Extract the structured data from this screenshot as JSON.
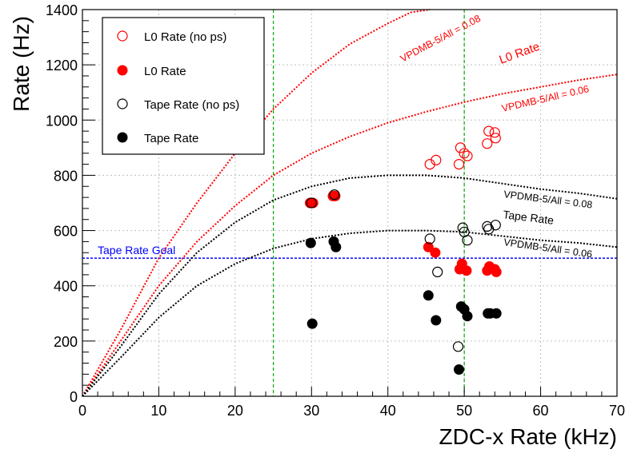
{
  "chart_data": {
    "type": "scatter",
    "xlabel": "ZDC-x Rate (kHz)",
    "ylabel": "Rate (Hz)",
    "xlim": [
      0,
      70
    ],
    "ylim": [
      0,
      1400
    ],
    "xticks": [
      "0",
      "10",
      "20",
      "30",
      "40",
      "50",
      "60",
      "70"
    ],
    "yticks": [
      "0",
      "200",
      "400",
      "600",
      "800",
      "1000",
      "1200",
      "1400"
    ],
    "grid": true,
    "legend_position": "top-left",
    "series": [
      {
        "name": "L0 Rate (no ps)",
        "marker": "open-circle",
        "color": "#ff0000",
        "points": [
          [
            45.5,
            840
          ],
          [
            46.3,
            855
          ],
          [
            49.3,
            840
          ],
          [
            49.5,
            900
          ],
          [
            50.0,
            880
          ],
          [
            50.4,
            870
          ],
          [
            53.0,
            915
          ],
          [
            53.2,
            960
          ],
          [
            54.0,
            955
          ],
          [
            54.1,
            935
          ]
        ]
      },
      {
        "name": "L0 Rate",
        "marker": "filled-circle",
        "color": "#ff0000",
        "points": [
          [
            29.8,
            700
          ],
          [
            30.2,
            700
          ],
          [
            32.8,
            725
          ],
          [
            33.1,
            725
          ],
          [
            45.3,
            540
          ],
          [
            46.2,
            520
          ],
          [
            49.4,
            460
          ],
          [
            49.7,
            480
          ],
          [
            50.3,
            455
          ],
          [
            53.0,
            455
          ],
          [
            53.3,
            470
          ],
          [
            54.0,
            460
          ],
          [
            54.2,
            450
          ]
        ]
      },
      {
        "name": "Tape Rate (no ps)",
        "marker": "open-circle",
        "color": "#000000",
        "points": [
          [
            30.0,
            700
          ],
          [
            33.0,
            730
          ],
          [
            45.5,
            570
          ],
          [
            46.5,
            450
          ],
          [
            49.2,
            180
          ],
          [
            49.8,
            610
          ],
          [
            50.0,
            595
          ],
          [
            50.4,
            565
          ],
          [
            53.0,
            615
          ],
          [
            53.2,
            605
          ],
          [
            54.1,
            620
          ]
        ]
      },
      {
        "name": "Tape Rate",
        "marker": "filled-circle",
        "color": "#000000",
        "points": [
          [
            29.9,
            555
          ],
          [
            30.1,
            263
          ],
          [
            32.9,
            560
          ],
          [
            33.2,
            540
          ],
          [
            45.3,
            365
          ],
          [
            46.3,
            275
          ],
          [
            49.3,
            97
          ],
          [
            49.6,
            325
          ],
          [
            50.0,
            315
          ],
          [
            50.4,
            290
          ],
          [
            53.1,
            300
          ],
          [
            53.4,
            300
          ],
          [
            54.2,
            300
          ]
        ]
      }
    ],
    "curves": [
      {
        "id": "l0-008",
        "color": "#ff0000",
        "points": [
          [
            0,
            0
          ],
          [
            5,
            240
          ],
          [
            10,
            500
          ],
          [
            15,
            700
          ],
          [
            20,
            880
          ],
          [
            25,
            1040
          ],
          [
            30,
            1170
          ],
          [
            35,
            1275
          ],
          [
            40,
            1350
          ],
          [
            43,
            1390
          ],
          [
            45.5,
            1400
          ]
        ]
      },
      {
        "id": "l0-006",
        "color": "#ff0000",
        "points": [
          [
            0,
            0
          ],
          [
            5,
            200
          ],
          [
            10,
            400
          ],
          [
            15,
            560
          ],
          [
            20,
            690
          ],
          [
            25,
            800
          ],
          [
            30,
            880
          ],
          [
            35,
            940
          ],
          [
            40,
            990
          ],
          [
            45,
            1030
          ],
          [
            50,
            1065
          ],
          [
            55,
            1095
          ],
          [
            60,
            1120
          ],
          [
            65,
            1145
          ],
          [
            70,
            1165
          ]
        ]
      },
      {
        "id": "tape-008",
        "color": "#000000",
        "points": [
          [
            0,
            0
          ],
          [
            5,
            180
          ],
          [
            10,
            370
          ],
          [
            15,
            520
          ],
          [
            20,
            630
          ],
          [
            25,
            710
          ],
          [
            30,
            760
          ],
          [
            35,
            790
          ],
          [
            40,
            800
          ],
          [
            45,
            800
          ],
          [
            50,
            790
          ],
          [
            55,
            770
          ],
          [
            60,
            750
          ],
          [
            65,
            735
          ],
          [
            70,
            715
          ]
        ]
      },
      {
        "id": "tape-006",
        "color": "#000000",
        "points": [
          [
            0,
            0
          ],
          [
            5,
            140
          ],
          [
            10,
            285
          ],
          [
            15,
            400
          ],
          [
            20,
            480
          ],
          [
            25,
            535
          ],
          [
            30,
            570
          ],
          [
            35,
            590
          ],
          [
            40,
            600
          ],
          [
            45,
            600
          ],
          [
            50,
            595
          ],
          [
            55,
            580
          ],
          [
            60,
            565
          ],
          [
            65,
            555
          ],
          [
            70,
            540
          ]
        ]
      }
    ],
    "tape_rate_goal": 500,
    "vertical_lines_x": [
      25,
      50
    ],
    "annotations": {
      "tape_rate_goal": "Tape Rate Goal",
      "l0_rate": "L0 Rate",
      "l0_vpdmb_008": "VPDMB-5/All = 0.08",
      "l0_vpdmb_006": "VPDMB-5/All = 0.06",
      "tape_vpdmb_008": "VPDMB-5/All = 0.08",
      "tape_rate": "Tape Rate",
      "tape_vpdmb_006": "VPDMB-5/All = 0.06"
    }
  },
  "colors": {
    "red": "#ff0000",
    "black": "#000000",
    "blue": "#0000ff",
    "green": "#00aa00",
    "grid": "#c0c0c0"
  }
}
